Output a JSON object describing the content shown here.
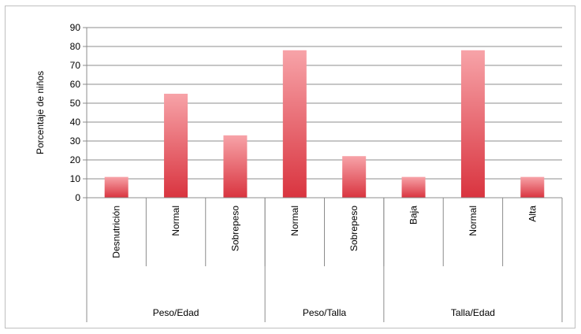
{
  "chart_data": {
    "type": "bar",
    "ylabel": "Porcentaje de niños",
    "xlabel": "",
    "title": "",
    "ylim": [
      0,
      90
    ],
    "yticks": [
      0,
      10,
      20,
      30,
      40,
      50,
      60,
      70,
      80,
      90
    ],
    "grid": true,
    "legend": "none",
    "bar_color": "#e8454f",
    "categories": [
      "Desnutrición",
      "Normal",
      "Sobrepeso",
      "Normal",
      "Sobrepeso",
      "Baja",
      "Normal",
      "Alta"
    ],
    "values": [
      11,
      55,
      33,
      78,
      22,
      11,
      78,
      11
    ],
    "groups": [
      {
        "label": "Peso/Edad",
        "count": 3
      },
      {
        "label": "Peso/Talla",
        "count": 2
      },
      {
        "label": "Talla/Edad",
        "count": 3
      }
    ]
  }
}
